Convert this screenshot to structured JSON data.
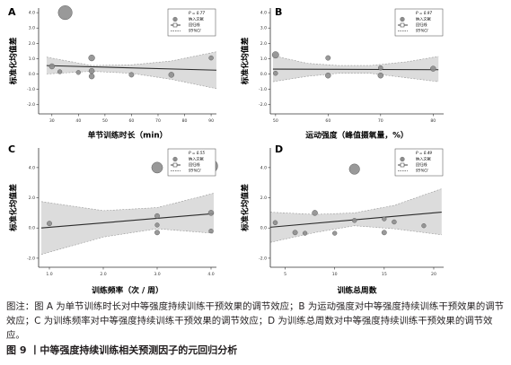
{
  "caption": "图注：图 A 为单节训练时长对中等强度持续训练干预效果的调节效应；B 为运动强度对中等强度持续训练干预效果的调节效应；C 为训练频率对中等强度持续训练干预效果的调节效应；D 为训练总周数对中等强度持续训练干预效果的调节效应。",
  "figure_title": "图 9 丨中等强度持续训练相关预测因子的元回归分析",
  "chart_data": [
    {
      "type": "scatter",
      "panel_label": "A",
      "xlabel": "单节训练时长（min）",
      "ylabel": "标准化均值差",
      "xlim": [
        25,
        92
      ],
      "ylim": [
        -2.6,
        4.3
      ],
      "xticks": [
        30,
        40,
        50,
        60,
        70,
        80,
        90
      ],
      "yticks": [
        -2.0,
        -1.0,
        0.0,
        1.0,
        2.0,
        3.0,
        4.0
      ],
      "ytick_labels": [
        "-2.0",
        "-1.0",
        "0.0",
        "1.0",
        "2.0",
        "3.0",
        "4.0"
      ],
      "legend": {
        "p_text": "P = 0.77",
        "included": "纳入文献",
        "fit": "回归线",
        "ci": "95%CI",
        "placement": "top-right"
      },
      "points": [
        {
          "x": 35,
          "y": 4.0,
          "weight": 1.0
        },
        {
          "x": 30,
          "y": 0.5,
          "weight": 0.3
        },
        {
          "x": 45,
          "y": 1.05,
          "weight": 0.35
        },
        {
          "x": 45,
          "y": 0.2,
          "weight": 0.3
        },
        {
          "x": 45,
          "y": -0.15,
          "weight": 0.3
        },
        {
          "x": 40,
          "y": 0.1,
          "weight": 0.2
        },
        {
          "x": 33,
          "y": 0.15,
          "weight": 0.2
        },
        {
          "x": 60,
          "y": -0.05,
          "weight": 0.25
        },
        {
          "x": 75,
          "y": -0.05,
          "weight": 0.3
        },
        {
          "x": 90,
          "y": 1.05,
          "weight": 0.22
        }
      ],
      "fit": {
        "x": [
          28,
          92
        ],
        "y": [
          0.55,
          0.25
        ]
      },
      "ci_lower": {
        "x": [
          28,
          45,
          60,
          75,
          92
        ],
        "y": [
          0.0,
          0.18,
          0.05,
          -0.35,
          -0.95
        ]
      },
      "ci_upper": {
        "x": [
          28,
          45,
          60,
          75,
          92
        ],
        "y": [
          1.1,
          0.55,
          0.6,
          0.85,
          1.45
        ]
      }
    },
    {
      "type": "scatter",
      "panel_label": "B",
      "xlabel": "运动强度（峰值摄氧量，%）",
      "ylabel": "标准化均值差",
      "xlim": [
        49,
        82
      ],
      "ylim": [
        -2.6,
        4.3
      ],
      "xticks": [
        50,
        60,
        70,
        80
      ],
      "yticks": [
        -2.0,
        -1.0,
        0.0,
        1.0,
        2.0,
        3.0,
        4.0
      ],
      "ytick_labels": [
        "-2.0",
        "-1.0",
        "0.0",
        "1.0",
        "2.0",
        "3.0",
        "4.0"
      ],
      "legend": {
        "p_text": "P = 0.97",
        "included": "纳入文献",
        "fit": "回归线",
        "ci": "95%CI",
        "placement": "top-right"
      },
      "points": [
        {
          "x": 50,
          "y": 1.25,
          "weight": 0.4
        },
        {
          "x": 50,
          "y": 0.05,
          "weight": 0.22
        },
        {
          "x": 60,
          "y": 1.05,
          "weight": 0.25
        },
        {
          "x": 60,
          "y": -0.1,
          "weight": 0.3
        },
        {
          "x": 70,
          "y": 0.4,
          "weight": 0.22
        },
        {
          "x": 70,
          "y": -0.1,
          "weight": 0.3
        },
        {
          "x": 80,
          "y": 0.35,
          "weight": 0.3
        }
      ],
      "fit": {
        "x": [
          49.5,
          81
        ],
        "y": [
          0.32,
          0.28
        ]
      },
      "ci_lower": {
        "x": [
          49.5,
          56,
          62,
          68,
          75,
          81
        ],
        "y": [
          -0.5,
          -0.15,
          0.05,
          0.05,
          -0.25,
          -0.5
        ]
      },
      "ci_upper": {
        "x": [
          49.5,
          56,
          62,
          68,
          75,
          81
        ],
        "y": [
          1.2,
          0.7,
          0.55,
          0.55,
          0.8,
          1.15
        ]
      }
    },
    {
      "type": "scatter",
      "panel_label": "C",
      "xlabel": "训练频率（次 / 周）",
      "ylabel": "标准化均值差",
      "xlim": [
        0.8,
        4.1
      ],
      "ylim": [
        -2.6,
        5.3
      ],
      "xticks": [
        1.0,
        2.0,
        3.0,
        4.0
      ],
      "xtick_labels": [
        "1.0",
        "2.0",
        "3.0",
        "4.0"
      ],
      "yticks": [
        -2.0,
        0.0,
        2.0,
        4.0
      ],
      "ytick_labels": [
        "-2.0",
        "0.0",
        "2.0",
        "4.0"
      ],
      "legend": {
        "p_text": "P = 0.55",
        "included": "纳入文献",
        "fit": "回归线",
        "ci": "95%CI",
        "placement": "top-right"
      },
      "points": [
        {
          "x": 1.0,
          "y": 0.3,
          "weight": 0.25
        },
        {
          "x": 3.0,
          "y": 4.0,
          "weight": 0.75
        },
        {
          "x": 3.0,
          "y": 0.8,
          "weight": 0.25
        },
        {
          "x": 3.0,
          "y": -0.3,
          "weight": 0.25
        },
        {
          "x": 3.0,
          "y": 0.2,
          "weight": 0.2
        },
        {
          "x": 4.0,
          "y": 4.1,
          "weight": 0.95
        },
        {
          "x": 4.0,
          "y": 1.0,
          "weight": 0.3
        },
        {
          "x": 4.0,
          "y": -0.2,
          "weight": 0.2
        }
      ],
      "fit": {
        "x": [
          0.85,
          4.05
        ],
        "y": [
          0.0,
          0.95
        ]
      },
      "ci_lower": {
        "x": [
          0.85,
          2.0,
          3.0,
          4.05
        ],
        "y": [
          -1.75,
          -0.6,
          -0.05,
          -0.35
        ]
      },
      "ci_upper": {
        "x": [
          0.85,
          2.0,
          3.0,
          4.05
        ],
        "y": [
          1.75,
          1.15,
          1.35,
          2.3
        ]
      }
    },
    {
      "type": "scatter",
      "panel_label": "D",
      "xlabel": "训练总周数",
      "ylabel": "标准化均值差",
      "xlim": [
        3.5,
        21
      ],
      "ylim": [
        -2.6,
        5.3
      ],
      "xticks": [
        5,
        10,
        15,
        20
      ],
      "yticks": [
        -2.0,
        0.0,
        2.0,
        4.0
      ],
      "ytick_labels": [
        "-2.0",
        "0.0",
        "2.0",
        "4.0"
      ],
      "legend": {
        "p_text": "P = 0.49",
        "included": "纳入文献",
        "fit": "回归线",
        "ci": "95%CI",
        "placement": "top-right"
      },
      "points": [
        {
          "x": 4,
          "y": 0.35,
          "weight": 0.22
        },
        {
          "x": 6,
          "y": -0.3,
          "weight": 0.25
        },
        {
          "x": 7,
          "y": -0.35,
          "weight": 0.2
        },
        {
          "x": 8,
          "y": 1.0,
          "weight": 0.3
        },
        {
          "x": 10,
          "y": -0.35,
          "weight": 0.2
        },
        {
          "x": 12,
          "y": 3.9,
          "weight": 0.7
        },
        {
          "x": 12,
          "y": 0.5,
          "weight": 0.22
        },
        {
          "x": 15,
          "y": 0.6,
          "weight": 0.2
        },
        {
          "x": 15,
          "y": -0.3,
          "weight": 0.25
        },
        {
          "x": 16,
          "y": 0.4,
          "weight": 0.22
        },
        {
          "x": 19,
          "y": 4.1,
          "weight": 0.95
        },
        {
          "x": 19,
          "y": 0.15,
          "weight": 0.2
        }
      ],
      "fit": {
        "x": [
          3.5,
          20.8
        ],
        "y": [
          0.05,
          1.05
        ]
      },
      "ci_lower": {
        "x": [
          3.5,
          8,
          12,
          16,
          20.8
        ],
        "y": [
          -0.95,
          -0.3,
          0.15,
          -0.05,
          -0.45
        ]
      },
      "ci_upper": {
        "x": [
          3.5,
          8,
          12,
          16,
          20.8
        ],
        "y": [
          1.05,
          0.9,
          1.0,
          1.5,
          2.6
        ]
      }
    }
  ]
}
